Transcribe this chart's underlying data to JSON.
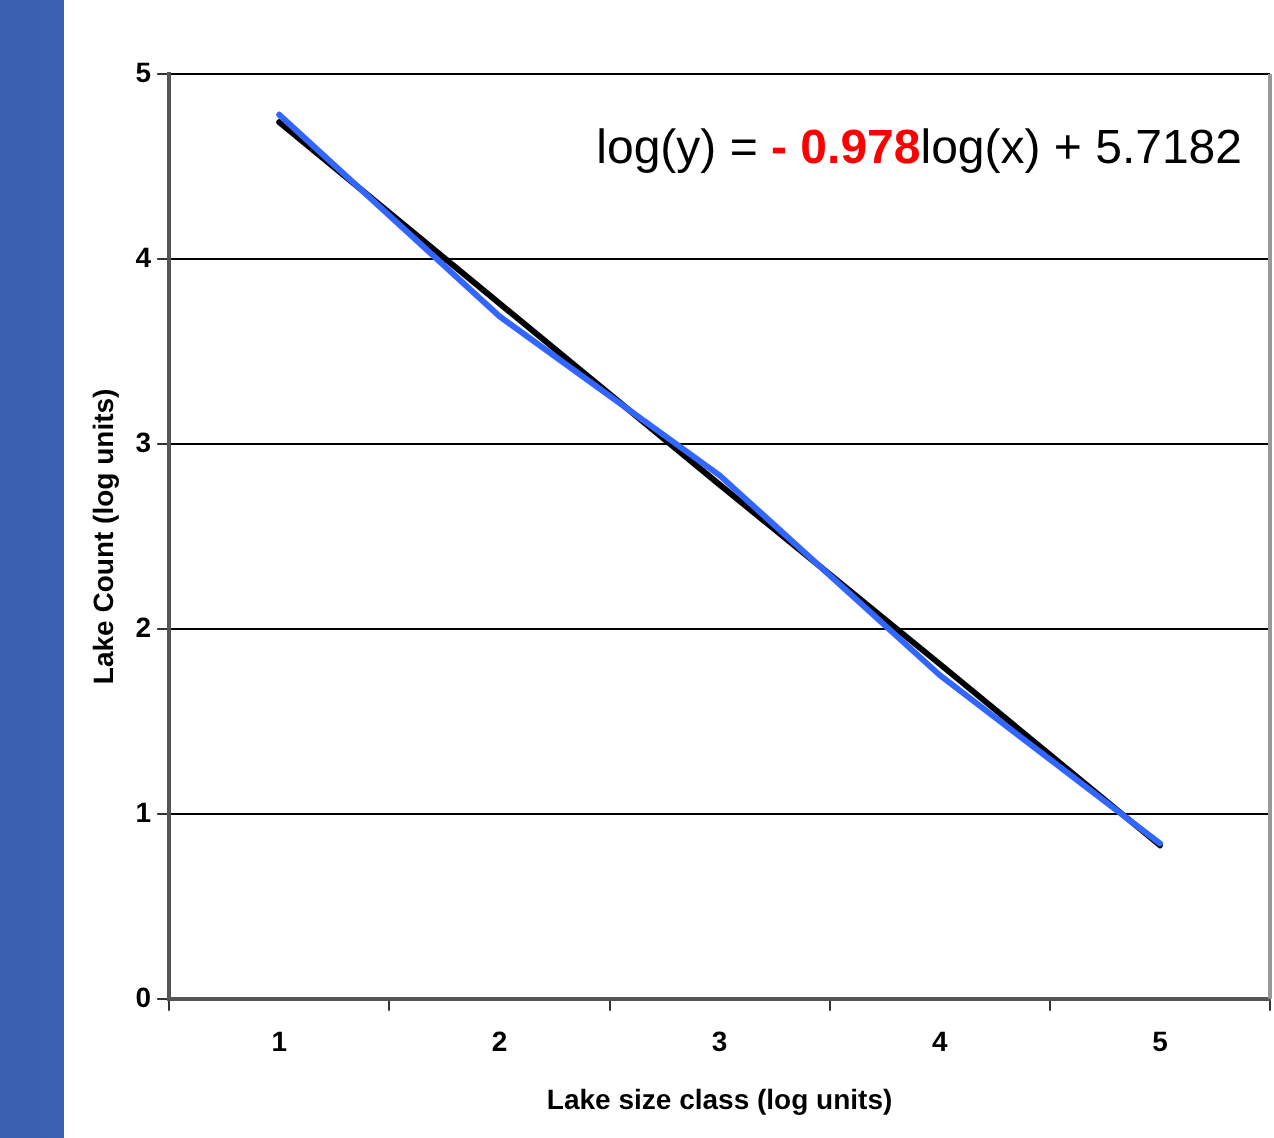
{
  "chart_data": {
    "type": "line",
    "xlabel": "Lake size class (log units)",
    "ylabel": "Lake Count (log units)",
    "categories": [
      "1",
      "2",
      "3",
      "4",
      "5"
    ],
    "series": [
      {
        "color": "#3366ff",
        "values": [
          4.78,
          3.69,
          2.83,
          1.75,
          0.84
        ]
      },
      {
        "color": "#000000",
        "values": [
          4.74,
          3.76,
          2.78,
          1.81,
          0.83
        ]
      }
    ],
    "ylim": [
      0,
      5
    ],
    "yticks": [
      0,
      1,
      2,
      3,
      4,
      5
    ],
    "grid": "y",
    "legend": false,
    "marker": "none",
    "line_style": "solid",
    "annotations": [
      "log(y) = - 0.978log(x) + 5.7182"
    ]
  }
}
